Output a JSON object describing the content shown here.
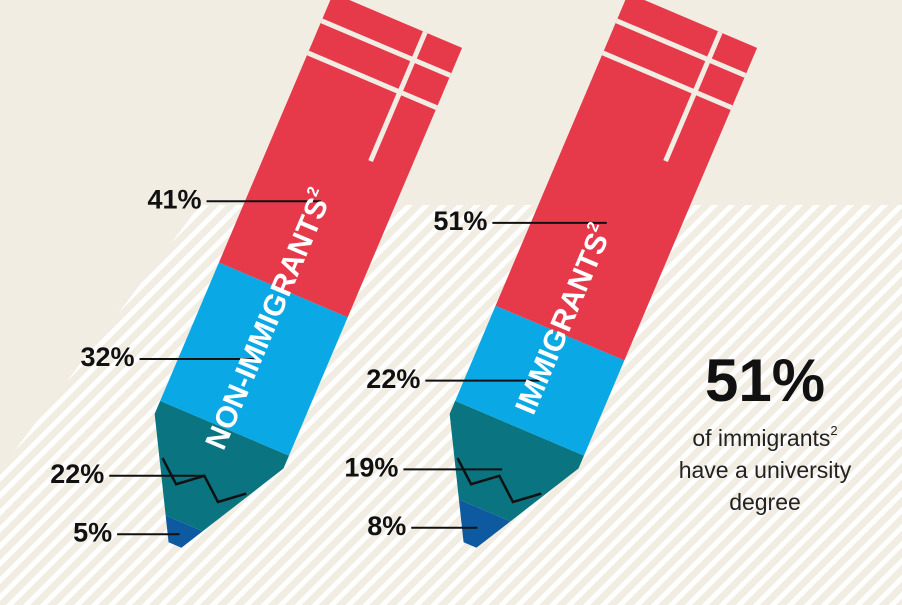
{
  "chart_data": [
    {
      "type": "pencil",
      "name": "NON-IMMIGRANTS",
      "footnote": "2",
      "values": [
        41,
        32,
        22,
        5
      ],
      "value_labels": [
        "41%",
        "32%",
        "22%",
        "5%"
      ],
      "colors": [
        "#e63a4b",
        "#0aa9e6",
        "#0a7480",
        "#0d5aa0"
      ]
    },
    {
      "type": "pencil",
      "name": "IMMIGRANTS",
      "footnote": "2",
      "values": [
        51,
        22,
        19,
        8
      ],
      "value_labels": [
        "51%",
        "22%",
        "19%",
        "8%"
      ],
      "colors": [
        "#e63a4b",
        "#0aa9e6",
        "#0a7480",
        "#0d5aa0"
      ]
    }
  ],
  "annotation": {
    "figure": "51%",
    "lines": [
      "of immigrants",
      "have a university",
      "degree"
    ],
    "footnote": "2"
  }
}
